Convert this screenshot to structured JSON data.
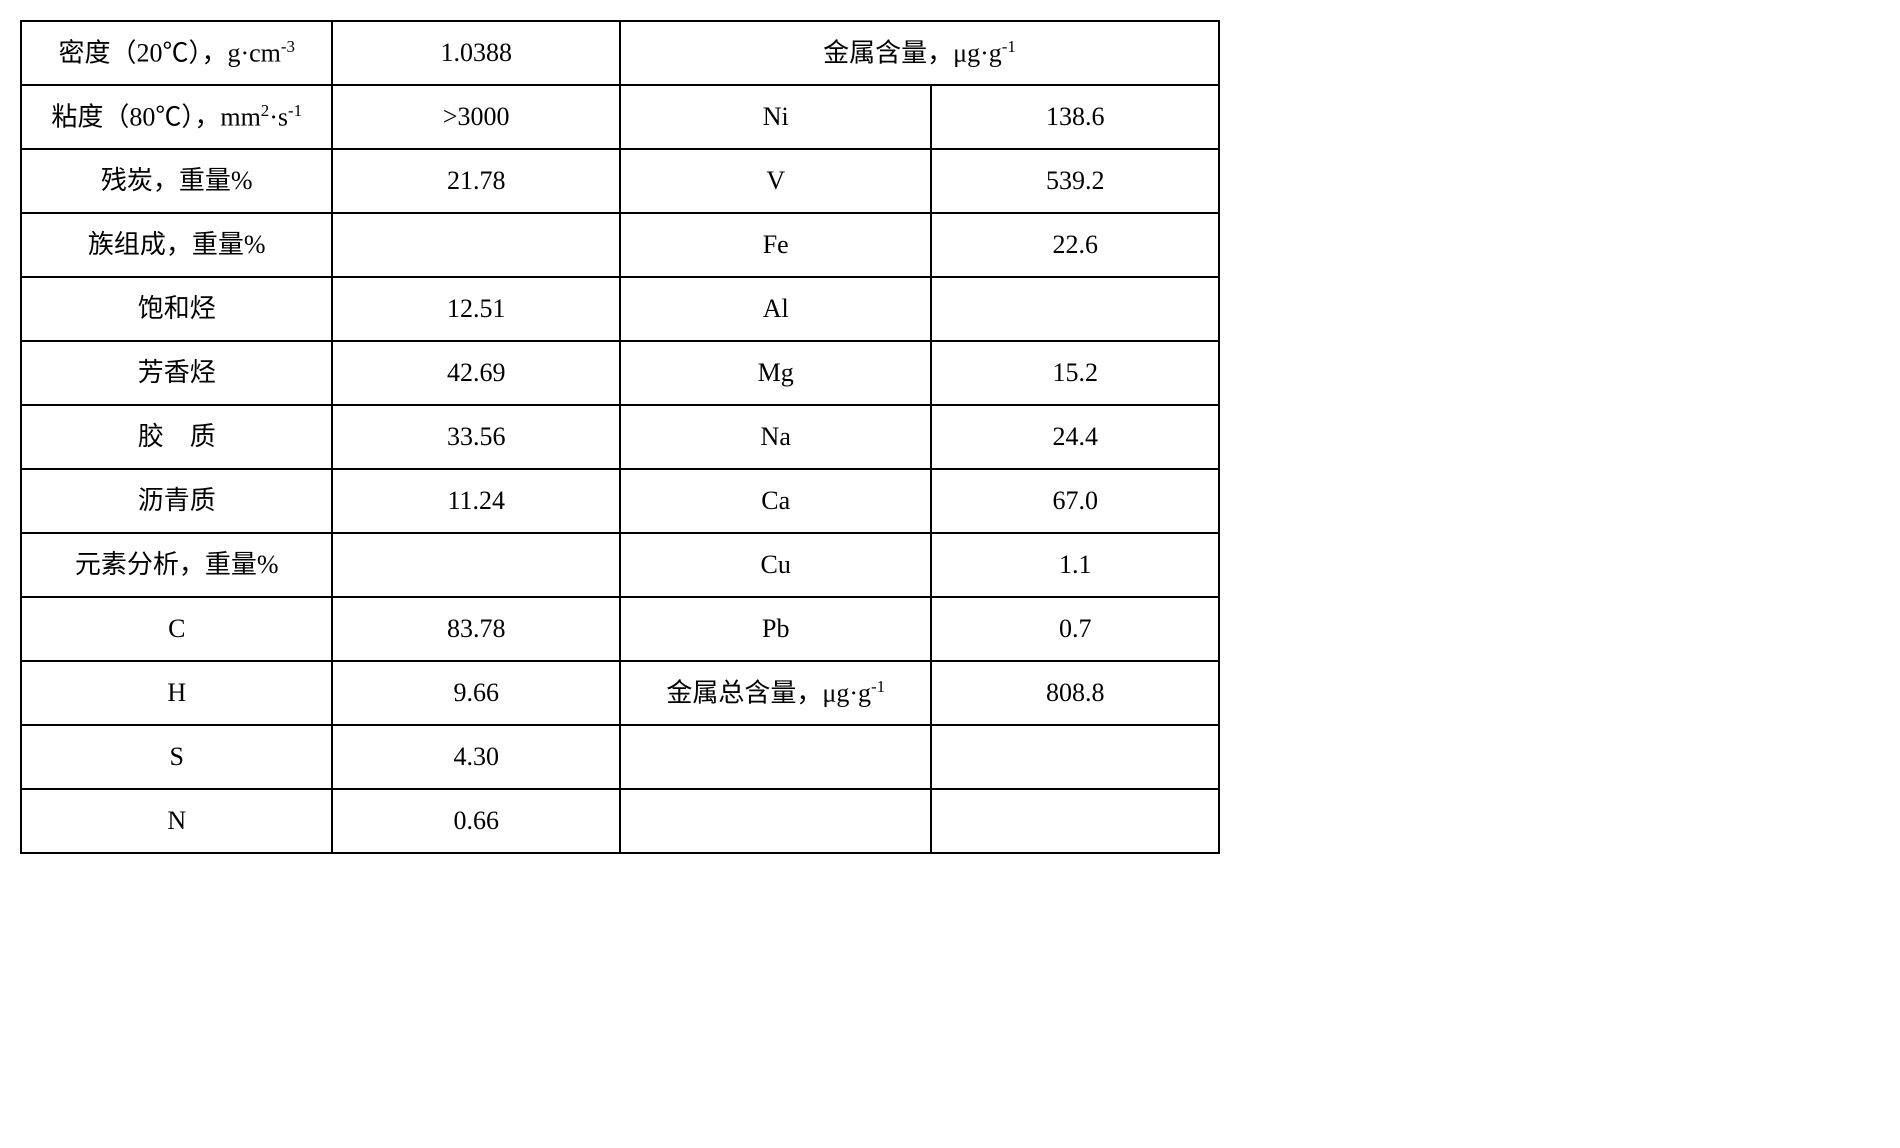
{
  "table": {
    "type": "table",
    "border_color": "#000000",
    "background_color": "#ffffff",
    "text_color": "#000000",
    "font_size_pt": 20,
    "columns": 4,
    "rows": [
      {
        "c1": "密度（20℃），g·cm⁻³",
        "c2": "1.0388",
        "c3": "金属含量，μg·g⁻¹",
        "c3_colspan": 2
      },
      {
        "c1": "粘度（80℃），mm²·s⁻¹",
        "c2": ">3000",
        "c3": "Ni",
        "c4": "138.6"
      },
      {
        "c1": "残炭，重量%",
        "c2": "21.78",
        "c3": "V",
        "c4": "539.2"
      },
      {
        "c1": "族组成，重量%",
        "c2": "",
        "c3": "Fe",
        "c4": "22.6"
      },
      {
        "c1": "饱和烃",
        "c2": "12.51",
        "c3": "Al",
        "c4": ""
      },
      {
        "c1": "芳香烃",
        "c2": "42.69",
        "c3": "Mg",
        "c4": "15.2"
      },
      {
        "c1": "胶　质",
        "c2": "33.56",
        "c3": "Na",
        "c4": "24.4"
      },
      {
        "c1": "沥青质",
        "c2": "11.24",
        "c3": "Ca",
        "c4": "67.0"
      },
      {
        "c1": "元素分析，重量%",
        "c2": "",
        "c3": "Cu",
        "c4": "1.1"
      },
      {
        "c1": "C",
        "c2": "83.78",
        "c3": "Pb",
        "c4": "0.7"
      },
      {
        "c1": "H",
        "c2": "9.66",
        "c3": "金属总含量，μg·g⁻¹",
        "c4": "808.8"
      },
      {
        "c1": "S",
        "c2": "4.30",
        "c3": "",
        "c4": ""
      },
      {
        "c1": "N",
        "c2": "0.66",
        "c3": "",
        "c4": ""
      }
    ]
  }
}
